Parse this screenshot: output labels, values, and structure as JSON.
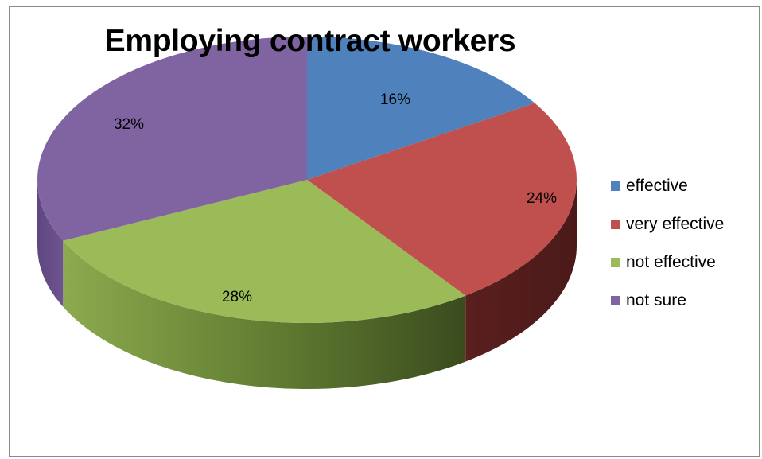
{
  "chart_data": {
    "type": "pie",
    "title": "Employing contract workers",
    "slices": [
      {
        "label": "effective",
        "value": 16,
        "display": "16%",
        "color": "#4F81BD",
        "side": "#2C4D75"
      },
      {
        "label": "very effective",
        "value": 24,
        "display": "24%",
        "color": "#C0504D",
        "side": "#632523"
      },
      {
        "label": "not effective",
        "value": 28,
        "display": "28%",
        "color": "#9BBB59",
        "side": "#4F6228"
      },
      {
        "label": "not sure",
        "value": 32,
        "display": "32%",
        "color": "#8064A2",
        "side": "#4E3B62"
      }
    ],
    "legend_position": "right",
    "three_d": true
  }
}
